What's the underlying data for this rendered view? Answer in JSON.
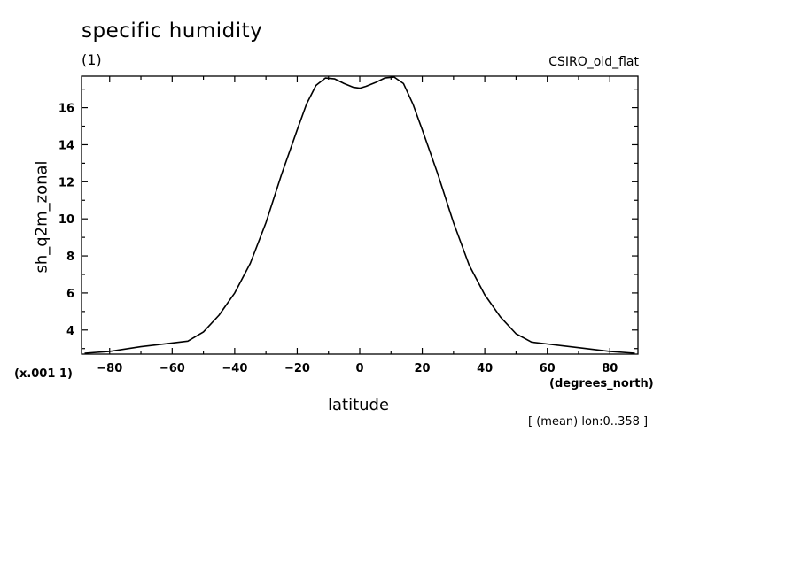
{
  "header": {
    "title": "specific humidity",
    "subtitle": "(1)",
    "model": "CSIRO_old_flat"
  },
  "footer": {
    "scale_note": "(x.001 1)",
    "x_units": "(degrees_north)",
    "subset": "[ (mean) lon:0..358 ]"
  },
  "chart_data": {
    "type": "line",
    "title": "specific humidity",
    "subtitle": "(1)",
    "xlabel": "latitude",
    "ylabel": "sh_q2m_zonal",
    "x_units": "degrees_north",
    "y_scale_factor": 0.001,
    "xlim": [
      -89,
      89
    ],
    "ylim": [
      2.7,
      17.7
    ],
    "x_ticks": [
      -80,
      -60,
      -40,
      -20,
      0,
      20,
      40,
      60,
      80
    ],
    "y_ticks": [
      4,
      6,
      8,
      10,
      12,
      14,
      16
    ],
    "grid": false,
    "series": [
      {
        "x": [
          -88,
          -80,
          -70,
          -60,
          -55,
          -50,
          -45,
          -40,
          -35,
          -30,
          -25,
          -20,
          -17,
          -14,
          -11,
          -8,
          -5,
          -2,
          0,
          2,
          5,
          8,
          11,
          14,
          17,
          20,
          25,
          30,
          35,
          40,
          45,
          50,
          55,
          60,
          70,
          80,
          88
        ],
        "values": [
          2.75,
          2.85,
          3.1,
          3.3,
          3.4,
          3.9,
          4.8,
          6.0,
          7.6,
          9.8,
          12.4,
          14.8,
          16.2,
          17.2,
          17.6,
          17.55,
          17.3,
          17.1,
          17.05,
          17.15,
          17.35,
          17.6,
          17.65,
          17.3,
          16.2,
          14.8,
          12.4,
          9.8,
          7.5,
          5.9,
          4.7,
          3.8,
          3.35,
          3.25,
          3.05,
          2.85,
          2.75
        ]
      }
    ]
  }
}
